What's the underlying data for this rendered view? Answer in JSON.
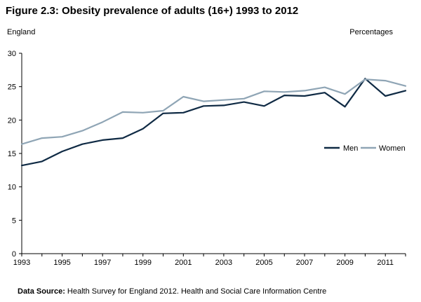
{
  "chart_data": {
    "type": "line",
    "title": "Figure 2.3: Obesity prevalence of adults (16+) 1993 to 2012",
    "region_label": "England",
    "units_label": "Percentages",
    "x": [
      1993,
      1994,
      1995,
      1996,
      1997,
      1998,
      1999,
      2000,
      2001,
      2002,
      2003,
      2004,
      2005,
      2006,
      2007,
      2008,
      2009,
      2010,
      2011,
      2012
    ],
    "x_tick_labels": [
      "1993",
      "1995",
      "1997",
      "1999",
      "2001",
      "2003",
      "2005",
      "2007",
      "2009",
      "2011"
    ],
    "x_ticks": [
      1993,
      1995,
      1997,
      1999,
      2001,
      2003,
      2005,
      2007,
      2009,
      2011
    ],
    "xlim": [
      1993,
      2012
    ],
    "y_ticks": [
      0,
      5,
      10,
      15,
      20,
      25,
      30
    ],
    "y_tick_labels": [
      "0",
      "5",
      "10",
      "15",
      "20",
      "25",
      "30"
    ],
    "ylim": [
      0,
      30
    ],
    "series": [
      {
        "name": "Men",
        "color": "#0f2a44",
        "values": [
          13.2,
          13.8,
          15.3,
          16.4,
          17.0,
          17.3,
          18.7,
          21.0,
          21.1,
          22.1,
          22.2,
          22.7,
          22.1,
          23.7,
          23.6,
          24.1,
          22.0,
          26.2,
          23.6,
          24.4
        ]
      },
      {
        "name": "Women",
        "color": "#8fa5b5",
        "values": [
          16.4,
          17.3,
          17.5,
          18.4,
          19.7,
          21.2,
          21.1,
          21.4,
          23.5,
          22.8,
          23.0,
          23.2,
          24.3,
          24.2,
          24.4,
          24.9,
          23.9,
          26.1,
          25.9,
          25.1
        ]
      }
    ],
    "legend_position": "right",
    "grid": false
  },
  "footer": {
    "source_label": "Data Source:",
    "source_text": "Health Survey for England 2012. Health and Social Care  Information Centre"
  }
}
